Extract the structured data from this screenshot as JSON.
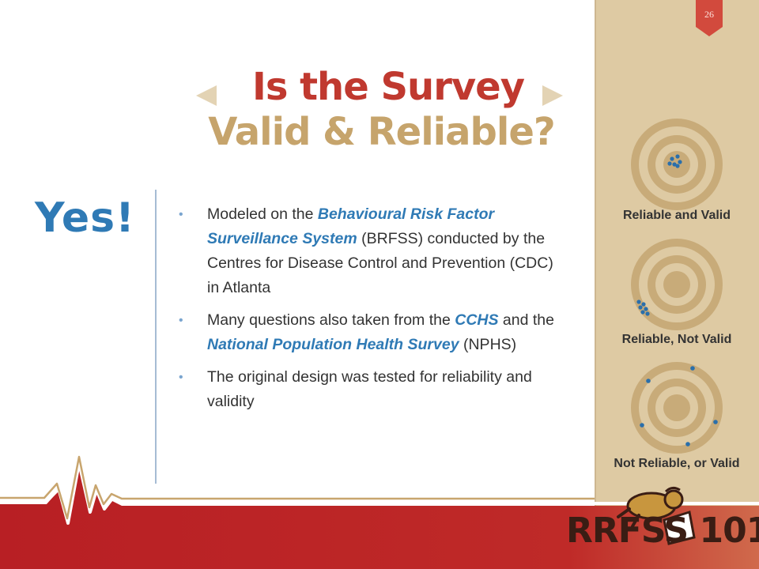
{
  "slide": {
    "page_number": "26",
    "title_line1": "Is the Survey",
    "title_line2": "Valid & Reliable?",
    "yes_label": "Yes!",
    "bullets": [
      {
        "parts": [
          {
            "text": "Modeled on the ",
            "highlight": false
          },
          {
            "text": "Behavioural Risk Factor Surveillance System",
            "highlight": true
          },
          {
            "text": " (BRFSS) conducted by the Centres for Disease Control and Prevention (CDC) in Atlanta",
            "highlight": false
          }
        ]
      },
      {
        "parts": [
          {
            "text": "Many questions also taken from the ",
            "highlight": false
          },
          {
            "text": "CCHS",
            "highlight": true
          },
          {
            "text": " and the ",
            "highlight": false
          },
          {
            "text": "National Population Health Survey",
            "highlight": true
          },
          {
            "text": " (NPHS)",
            "highlight": false
          }
        ]
      },
      {
        "parts": [
          {
            "text": "The original design was tested for reliability and validity",
            "highlight": false
          }
        ]
      }
    ]
  },
  "targets": [
    {
      "caption": "Reliable and Valid"
    },
    {
      "caption": "Reliable, Not Valid"
    },
    {
      "caption": "Not Reliable, or Valid"
    }
  ],
  "logo": {
    "text": "RRFSS 101"
  },
  "colors": {
    "title_red": "#c0392f",
    "title_tan": "#c6a46c",
    "accent_blue": "#2f7ab5",
    "panel_tan": "#decaa3",
    "band_red": "#b81f24",
    "target_tan": "#c8ab79",
    "dot_blue": "#2a6fab"
  }
}
